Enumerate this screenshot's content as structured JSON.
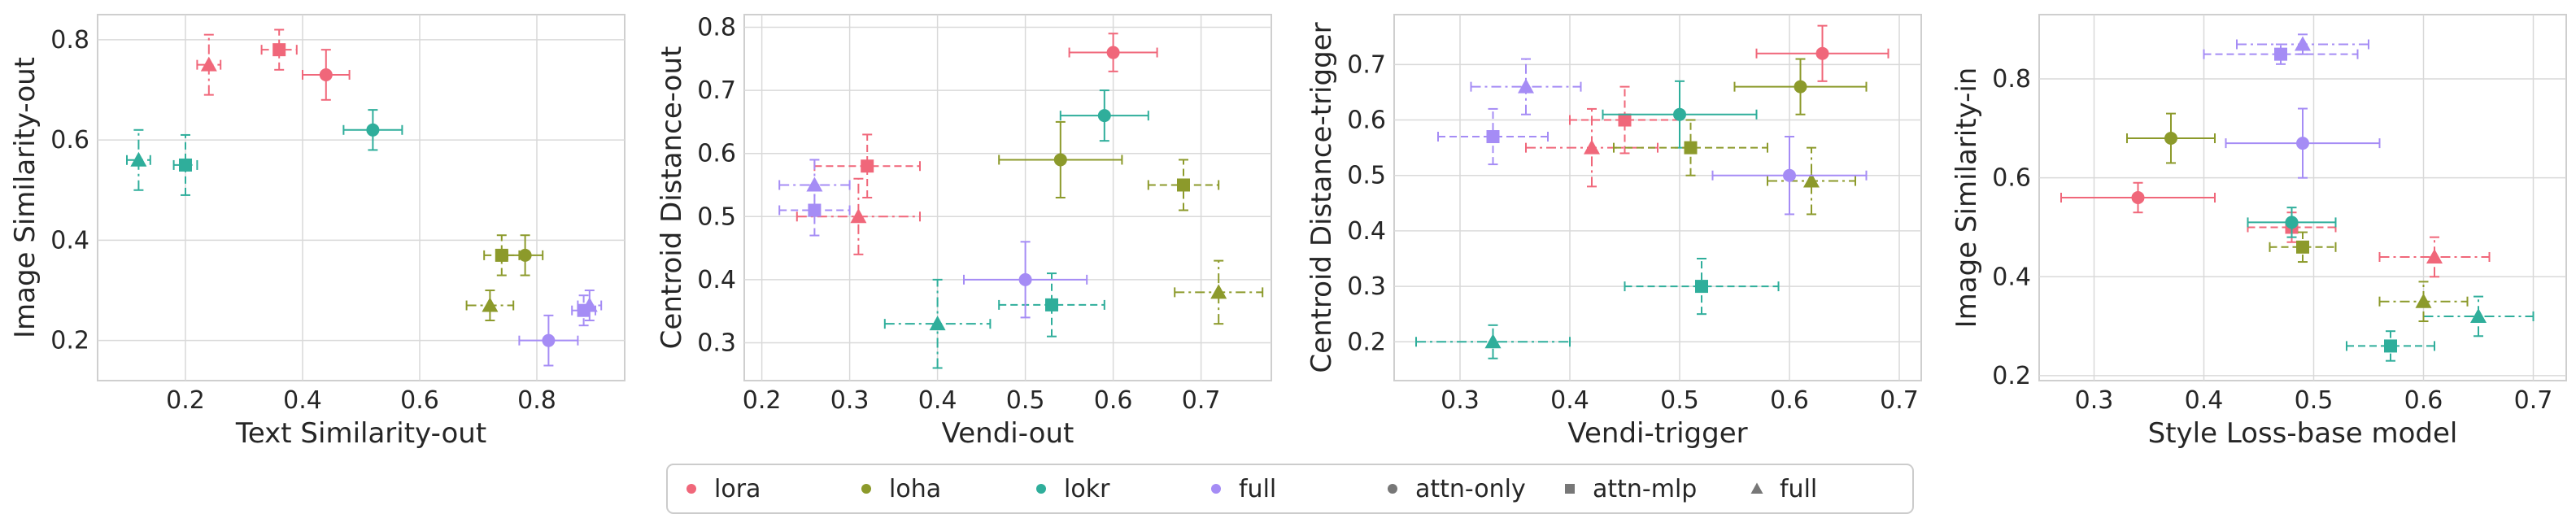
{
  "colors": {
    "lora": "#f0677a",
    "loha": "#8c9a2b",
    "lokr": "#2fae9b",
    "full": "#a58cf5",
    "neutral": "#777777",
    "grid": "#d9d9d9",
    "frame": "#cfcfcf"
  },
  "legend": {
    "entries": [
      {
        "label": "lora",
        "color_key": "lora",
        "marker": "circle"
      },
      {
        "label": "loha",
        "color_key": "loha",
        "marker": "circle"
      },
      {
        "label": "lokr",
        "color_key": "lokr",
        "marker": "circle"
      },
      {
        "label": "full",
        "color_key": "full",
        "marker": "circle"
      },
      {
        "label": "attn-only",
        "color_key": "neutral",
        "marker": "circle"
      },
      {
        "label": "attn-mlp",
        "color_key": "neutral",
        "marker": "square"
      },
      {
        "label": "full",
        "color_key": "neutral",
        "marker": "triangle"
      }
    ]
  },
  "chart_data": [
    {
      "type": "scatter",
      "xlabel": "Text Similarity-out",
      "ylabel": "Image Similarity-out",
      "xlim": [
        0.05,
        0.95
      ],
      "ylim": [
        0.12,
        0.85
      ],
      "xticks": [
        "0.2",
        "0.4",
        "0.6",
        "0.8"
      ],
      "xtick_values": [
        0.2,
        0.4,
        0.6,
        0.8
      ],
      "yticks": [
        "0.2",
        "0.4",
        "0.6",
        "0.8"
      ],
      "ytick_values": [
        0.2,
        0.4,
        0.6,
        0.8
      ],
      "grid": true,
      "points": [
        {
          "method": "lora",
          "variant": "full",
          "x": 0.24,
          "y": 0.75,
          "xerr": 0.02,
          "yerr": 0.06
        },
        {
          "method": "lora",
          "variant": "attn-mlp",
          "x": 0.36,
          "y": 0.78,
          "xerr": 0.03,
          "yerr": 0.04
        },
        {
          "method": "lora",
          "variant": "attn-only",
          "x": 0.44,
          "y": 0.73,
          "xerr": 0.04,
          "yerr": 0.05
        },
        {
          "method": "lokr",
          "variant": "full",
          "x": 0.12,
          "y": 0.56,
          "xerr": 0.02,
          "yerr": 0.06
        },
        {
          "method": "lokr",
          "variant": "attn-mlp",
          "x": 0.2,
          "y": 0.55,
          "xerr": 0.02,
          "yerr": 0.06
        },
        {
          "method": "lokr",
          "variant": "attn-only",
          "x": 0.52,
          "y": 0.62,
          "xerr": 0.05,
          "yerr": 0.04
        },
        {
          "method": "loha",
          "variant": "full",
          "x": 0.72,
          "y": 0.27,
          "xerr": 0.04,
          "yerr": 0.03
        },
        {
          "method": "loha",
          "variant": "attn-mlp",
          "x": 0.74,
          "y": 0.37,
          "xerr": 0.03,
          "yerr": 0.04
        },
        {
          "method": "loha",
          "variant": "attn-only",
          "x": 0.78,
          "y": 0.37,
          "xerr": 0.03,
          "yerr": 0.04
        },
        {
          "method": "full",
          "variant": "attn-only",
          "x": 0.82,
          "y": 0.2,
          "xerr": 0.05,
          "yerr": 0.05
        },
        {
          "method": "full",
          "variant": "attn-mlp",
          "x": 0.88,
          "y": 0.26,
          "xerr": 0.02,
          "yerr": 0.03
        },
        {
          "method": "full",
          "variant": "full",
          "x": 0.89,
          "y": 0.27,
          "xerr": 0.02,
          "yerr": 0.03
        }
      ]
    },
    {
      "type": "scatter",
      "xlabel": "Vendi-out",
      "ylabel": "Centroid Distance-out",
      "xlim": [
        0.18,
        0.78
      ],
      "ylim": [
        0.24,
        0.82
      ],
      "xticks": [
        "0.2",
        "0.3",
        "0.4",
        "0.5",
        "0.6",
        "0.7"
      ],
      "xtick_values": [
        0.2,
        0.3,
        0.4,
        0.5,
        0.6,
        0.7
      ],
      "yticks": [
        "0.3",
        "0.4",
        "0.5",
        "0.6",
        "0.7",
        "0.8"
      ],
      "ytick_values": [
        0.3,
        0.4,
        0.5,
        0.6,
        0.7,
        0.8
      ],
      "grid": true,
      "points": [
        {
          "method": "lora",
          "variant": "attn-only",
          "x": 0.6,
          "y": 0.76,
          "xerr": 0.05,
          "yerr": 0.03
        },
        {
          "method": "lora",
          "variant": "attn-mlp",
          "x": 0.32,
          "y": 0.58,
          "xerr": 0.06,
          "yerr": 0.05
        },
        {
          "method": "lora",
          "variant": "full",
          "x": 0.31,
          "y": 0.5,
          "xerr": 0.07,
          "yerr": 0.06
        },
        {
          "method": "lokr",
          "variant": "attn-only",
          "x": 0.59,
          "y": 0.66,
          "xerr": 0.05,
          "yerr": 0.04
        },
        {
          "method": "lokr",
          "variant": "attn-mlp",
          "x": 0.53,
          "y": 0.36,
          "xerr": 0.06,
          "yerr": 0.05
        },
        {
          "method": "lokr",
          "variant": "full",
          "x": 0.4,
          "y": 0.33,
          "xerr": 0.06,
          "yerr": 0.07
        },
        {
          "method": "loha",
          "variant": "attn-only",
          "x": 0.54,
          "y": 0.59,
          "xerr": 0.07,
          "yerr": 0.06
        },
        {
          "method": "loha",
          "variant": "attn-mlp",
          "x": 0.68,
          "y": 0.55,
          "xerr": 0.04,
          "yerr": 0.04
        },
        {
          "method": "loha",
          "variant": "full",
          "x": 0.72,
          "y": 0.38,
          "xerr": 0.05,
          "yerr": 0.05
        },
        {
          "method": "full",
          "variant": "attn-only",
          "x": 0.5,
          "y": 0.4,
          "xerr": 0.07,
          "yerr": 0.06
        },
        {
          "method": "full",
          "variant": "full",
          "x": 0.26,
          "y": 0.55,
          "xerr": 0.04,
          "yerr": 0.04
        },
        {
          "method": "full",
          "variant": "attn-mlp",
          "x": 0.26,
          "y": 0.51,
          "xerr": 0.04,
          "yerr": 0.04
        }
      ]
    },
    {
      "type": "scatter",
      "xlabel": "Vendi-trigger",
      "ylabel": "Centroid Distance-trigger",
      "xlim": [
        0.24,
        0.72
      ],
      "ylim": [
        0.13,
        0.79
      ],
      "xticks": [
        "0.3",
        "0.4",
        "0.5",
        "0.6",
        "0.7"
      ],
      "xtick_values": [
        0.3,
        0.4,
        0.5,
        0.6,
        0.7
      ],
      "yticks": [
        "0.2",
        "0.3",
        "0.4",
        "0.5",
        "0.6",
        "0.7"
      ],
      "ytick_values": [
        0.2,
        0.3,
        0.4,
        0.5,
        0.6,
        0.7
      ],
      "grid": true,
      "points": [
        {
          "method": "lora",
          "variant": "attn-only",
          "x": 0.63,
          "y": 0.72,
          "xerr": 0.06,
          "yerr": 0.05
        },
        {
          "method": "lora",
          "variant": "attn-mlp",
          "x": 0.45,
          "y": 0.6,
          "xerr": 0.05,
          "yerr": 0.06
        },
        {
          "method": "lora",
          "variant": "full",
          "x": 0.42,
          "y": 0.55,
          "xerr": 0.06,
          "yerr": 0.07
        },
        {
          "method": "lokr",
          "variant": "attn-only",
          "x": 0.5,
          "y": 0.61,
          "xerr": 0.07,
          "yerr": 0.06
        },
        {
          "method": "lokr",
          "variant": "attn-mlp",
          "x": 0.52,
          "y": 0.3,
          "xerr": 0.07,
          "yerr": 0.05
        },
        {
          "method": "lokr",
          "variant": "full",
          "x": 0.33,
          "y": 0.2,
          "xerr": 0.07,
          "yerr": 0.03
        },
        {
          "method": "loha",
          "variant": "attn-only",
          "x": 0.61,
          "y": 0.66,
          "xerr": 0.06,
          "yerr": 0.05
        },
        {
          "method": "loha",
          "variant": "attn-mlp",
          "x": 0.51,
          "y": 0.55,
          "xerr": 0.07,
          "yerr": 0.05
        },
        {
          "method": "loha",
          "variant": "full",
          "x": 0.62,
          "y": 0.49,
          "xerr": 0.04,
          "yerr": 0.06
        },
        {
          "method": "full",
          "variant": "full",
          "x": 0.36,
          "y": 0.66,
          "xerr": 0.05,
          "yerr": 0.05
        },
        {
          "method": "full",
          "variant": "attn-mlp",
          "x": 0.33,
          "y": 0.57,
          "xerr": 0.05,
          "yerr": 0.05
        },
        {
          "method": "full",
          "variant": "attn-only",
          "x": 0.6,
          "y": 0.5,
          "xerr": 0.07,
          "yerr": 0.07
        }
      ]
    },
    {
      "type": "scatter",
      "xlabel": "Style Loss-base model",
      "ylabel": "Image Similarity-in",
      "xlim": [
        0.25,
        0.73
      ],
      "ylim": [
        0.19,
        0.93
      ],
      "xticks": [
        "0.3",
        "0.4",
        "0.5",
        "0.6",
        "0.7"
      ],
      "xtick_values": [
        0.3,
        0.4,
        0.5,
        0.6,
        0.7
      ],
      "yticks": [
        "0.2",
        "0.4",
        "0.6",
        "0.8"
      ],
      "ytick_values": [
        0.2,
        0.4,
        0.6,
        0.8
      ],
      "grid": true,
      "points": [
        {
          "method": "full",
          "variant": "full",
          "x": 0.49,
          "y": 0.87,
          "xerr": 0.06,
          "yerr": 0.02
        },
        {
          "method": "full",
          "variant": "attn-mlp",
          "x": 0.47,
          "y": 0.85,
          "xerr": 0.07,
          "yerr": 0.02
        },
        {
          "method": "full",
          "variant": "attn-only",
          "x": 0.49,
          "y": 0.67,
          "xerr": 0.07,
          "yerr": 0.07
        },
        {
          "method": "loha",
          "variant": "attn-only",
          "x": 0.37,
          "y": 0.68,
          "xerr": 0.04,
          "yerr": 0.05
        },
        {
          "method": "lora",
          "variant": "attn-only",
          "x": 0.34,
          "y": 0.56,
          "xerr": 0.07,
          "yerr": 0.03
        },
        {
          "method": "lora",
          "variant": "attn-mlp",
          "x": 0.48,
          "y": 0.5,
          "xerr": 0.04,
          "yerr": 0.03
        },
        {
          "method": "lora",
          "variant": "full",
          "x": 0.61,
          "y": 0.44,
          "xerr": 0.05,
          "yerr": 0.04
        },
        {
          "method": "lokr",
          "variant": "attn-only",
          "x": 0.48,
          "y": 0.51,
          "xerr": 0.04,
          "yerr": 0.03
        },
        {
          "method": "lokr",
          "variant": "attn-mlp",
          "x": 0.57,
          "y": 0.26,
          "xerr": 0.04,
          "yerr": 0.03
        },
        {
          "method": "lokr",
          "variant": "full",
          "x": 0.65,
          "y": 0.32,
          "xerr": 0.05,
          "yerr": 0.04
        },
        {
          "method": "loha",
          "variant": "attn-mlp",
          "x": 0.49,
          "y": 0.46,
          "xerr": 0.03,
          "yerr": 0.03
        },
        {
          "method": "loha",
          "variant": "full",
          "x": 0.6,
          "y": 0.35,
          "xerr": 0.04,
          "yerr": 0.04
        }
      ]
    }
  ]
}
